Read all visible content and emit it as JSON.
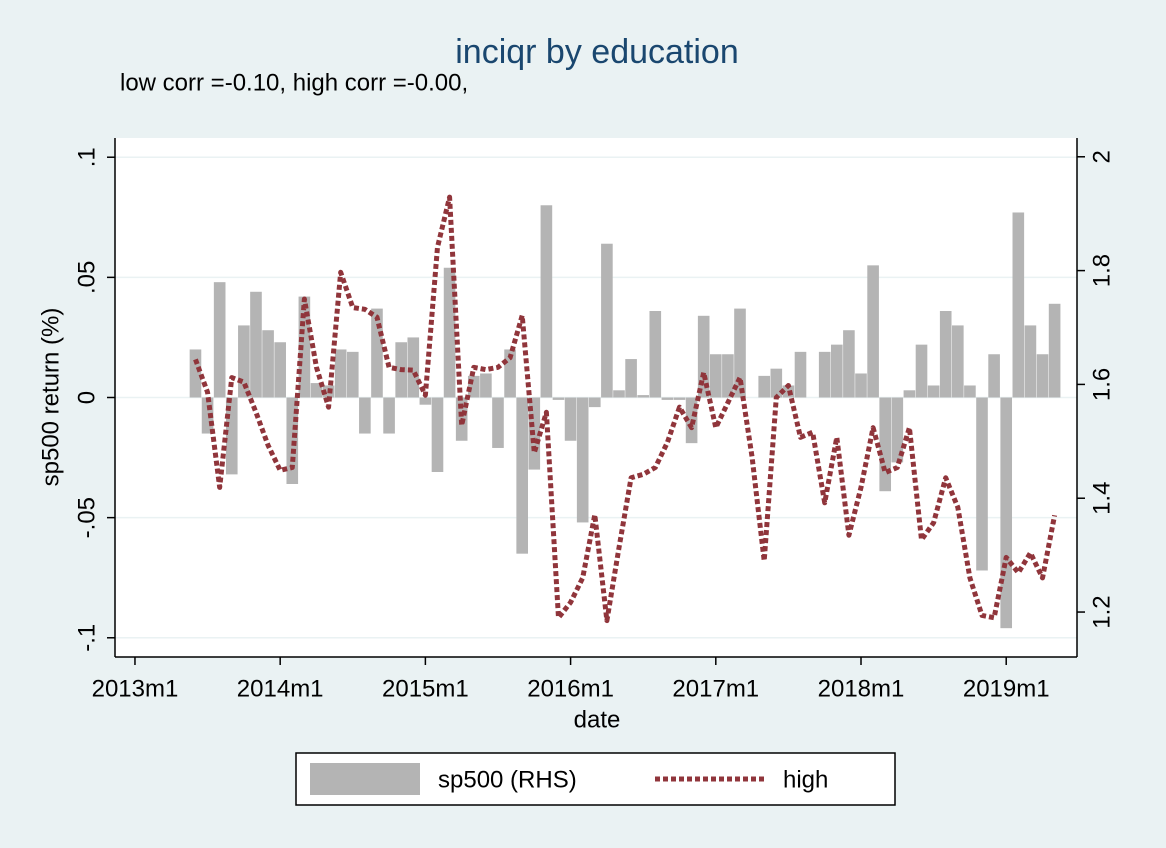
{
  "chart_data": {
    "type": "combo",
    "title": "inciqr by education",
    "subtitle": "low corr =-0.10, high corr =-0.00,",
    "x_label": "date",
    "y_label": "sp500 return (%)",
    "x": [
      641,
      642,
      643,
      644,
      645,
      646,
      647,
      648,
      649,
      650,
      651,
      652,
      653,
      654,
      655,
      656,
      657,
      658,
      659,
      660,
      661,
      662,
      663,
      664,
      665,
      666,
      667,
      668,
      669,
      670,
      671,
      672,
      673,
      674,
      675,
      676,
      677,
      678,
      679,
      680,
      681,
      682,
      683,
      684,
      685,
      686,
      687,
      688,
      689,
      690,
      691,
      692,
      693,
      694,
      695,
      696,
      697,
      698,
      699,
      700,
      701,
      702,
      703,
      704,
      705,
      706,
      707,
      708,
      709,
      710,
      711,
      712
    ],
    "xlim": [
      634.35,
      713.85
    ],
    "xticks": [
      {
        "value": 636,
        "label": "2013m1"
      },
      {
        "value": 648,
        "label": "2014m1"
      },
      {
        "value": 660,
        "label": "2015m1"
      },
      {
        "value": 672,
        "label": "2016m1"
      },
      {
        "value": 684,
        "label": "2017m1"
      },
      {
        "value": 696,
        "label": "2018m1"
      },
      {
        "value": 708,
        "label": "2019m1"
      }
    ],
    "ylim": [
      -0.108,
      0.108
    ],
    "yticks": [
      {
        "value": -0.1,
        "label": "-.1"
      },
      {
        "value": -0.05,
        "label": "-.05"
      },
      0,
      {
        "value": 0.05,
        "label": ".05"
      },
      {
        "value": 0.1,
        "label": ".1"
      }
    ],
    "y2lim": [
      1.121,
      2.033
    ],
    "y2ticks": [
      1.2,
      1.4,
      1.6,
      1.8,
      2
    ],
    "grid": true,
    "series": [
      {
        "name": "sp500 (RHS)",
        "type": "bar",
        "color": "#b4b4b4",
        "values": [
          0.02,
          -0.015,
          0.048,
          -0.032,
          0.03,
          0.044,
          0.028,
          0.023,
          -0.036,
          0.042,
          0.006,
          0.005,
          0.02,
          0.019,
          -0.015,
          0.037,
          -0.015,
          0.023,
          0.025,
          -0.003,
          -0.031,
          0.054,
          -0.018,
          0.009,
          0.01,
          -0.021,
          0.02,
          -0.065,
          -0.03,
          0.08,
          -0.001,
          -0.018,
          -0.052,
          -0.004,
          0.064,
          0.003,
          0.016,
          0.001,
          0.036,
          -0.001,
          -0.001,
          -0.019,
          0.034,
          0.018,
          0.018,
          0.037,
          0.0,
          0.009,
          0.012,
          0.005,
          0.019,
          0.0,
          0.019,
          0.022,
          0.028,
          0.01,
          0.055,
          -0.039,
          -0.027,
          0.003,
          0.022,
          0.005,
          0.036,
          0.03,
          0.005,
          -0.072,
          0.018,
          -0.096,
          0.077,
          0.03,
          0.018,
          0.039
        ]
      },
      {
        "name": "high",
        "type": "line",
        "axis": "y2",
        "color": "#90353b",
        "values": [
          1.644,
          1.586,
          1.419,
          1.612,
          1.604,
          1.551,
          1.493,
          1.449,
          1.454,
          1.75,
          1.63,
          1.56,
          1.797,
          1.735,
          1.732,
          1.718,
          1.63,
          1.626,
          1.625,
          1.581,
          1.841,
          1.929,
          1.528,
          1.63,
          1.626,
          1.63,
          1.647,
          1.721,
          1.48,
          1.551,
          1.19,
          1.217,
          1.26,
          1.371,
          1.185,
          1.313,
          1.436,
          1.442,
          1.454,
          1.498,
          1.56,
          1.524,
          1.621,
          1.524,
          1.568,
          1.612,
          1.472,
          1.29,
          1.577,
          1.598,
          1.507,
          1.516,
          1.392,
          1.507,
          1.335,
          1.419,
          1.524,
          1.445,
          1.454,
          1.524,
          1.327,
          1.357,
          1.436,
          1.384,
          1.26,
          1.194,
          1.19,
          1.296,
          1.269,
          1.304,
          1.26,
          1.37
        ]
      }
    ]
  }
}
